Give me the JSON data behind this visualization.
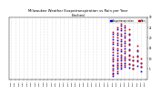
{
  "title": "Milwaukee Weather Evapotranspiration vs Rain per Year\n(Inches)",
  "title_fontsize": 2.8,
  "background_color": "#ffffff",
  "grid_color": "#bbbbbb",
  "legend_labels": [
    "Evapotranspiration",
    "Rain"
  ],
  "legend_colors": [
    "#0000ff",
    "#ff0000"
  ],
  "x_years": [
    1990,
    1991,
    1992,
    1993,
    1994,
    1995,
    1996,
    1997,
    1998,
    1999,
    2000,
    2001,
    2002,
    2003,
    2004,
    2005,
    2006,
    2007,
    2008,
    2009,
    2010,
    2011,
    2012,
    2013,
    2014,
    2015,
    2016,
    2017,
    2018,
    2019,
    2020,
    2021,
    2022,
    2023
  ],
  "et_points": [
    [
      2015,
      22.0
    ],
    [
      2015,
      19.5
    ],
    [
      2015,
      17.0
    ],
    [
      2015,
      14.5
    ],
    [
      2015,
      12.0
    ],
    [
      2015,
      9.5
    ],
    [
      2015,
      7.0
    ],
    [
      2015,
      5.0
    ],
    [
      2015,
      3.0
    ],
    [
      2015,
      1.5
    ],
    [
      2016,
      24.0
    ],
    [
      2016,
      21.5
    ],
    [
      2016,
      19.0
    ],
    [
      2016,
      16.5
    ],
    [
      2016,
      14.0
    ],
    [
      2016,
      11.5
    ],
    [
      2016,
      9.0
    ],
    [
      2016,
      7.0
    ],
    [
      2016,
      5.0
    ],
    [
      2016,
      3.0
    ],
    [
      2017,
      26.0
    ],
    [
      2017,
      23.5
    ],
    [
      2017,
      21.0
    ],
    [
      2017,
      18.5
    ],
    [
      2017,
      16.0
    ],
    [
      2017,
      13.5
    ],
    [
      2017,
      11.0
    ],
    [
      2017,
      9.0
    ],
    [
      2017,
      7.0
    ],
    [
      2017,
      5.0
    ],
    [
      2018,
      25.0
    ],
    [
      2018,
      22.5
    ],
    [
      2018,
      20.0
    ],
    [
      2018,
      17.5
    ],
    [
      2018,
      15.0
    ],
    [
      2018,
      12.5
    ],
    [
      2018,
      10.0
    ],
    [
      2018,
      8.0
    ],
    [
      2018,
      6.0
    ],
    [
      2019,
      22.0
    ],
    [
      2019,
      19.5
    ],
    [
      2019,
      17.0
    ],
    [
      2019,
      14.5
    ],
    [
      2019,
      12.0
    ],
    [
      2019,
      9.5
    ],
    [
      2019,
      7.5
    ],
    [
      2019,
      5.5
    ],
    [
      2020,
      9.0
    ],
    [
      2020,
      7.0
    ],
    [
      2020,
      5.0
    ],
    [
      2021,
      14.0
    ],
    [
      2021,
      11.5
    ],
    [
      2021,
      9.0
    ],
    [
      2021,
      6.5
    ],
    [
      2022,
      8.0
    ],
    [
      2022,
      6.0
    ],
    [
      2022,
      4.0
    ]
  ],
  "rain_points": [
    [
      2015,
      23.0
    ],
    [
      2015,
      20.5
    ],
    [
      2015,
      18.0
    ],
    [
      2015,
      15.5
    ],
    [
      2015,
      13.0
    ],
    [
      2015,
      10.5
    ],
    [
      2015,
      8.5
    ],
    [
      2015,
      6.5
    ],
    [
      2015,
      4.5
    ],
    [
      2015,
      2.5
    ],
    [
      2016,
      25.0
    ],
    [
      2016,
      22.5
    ],
    [
      2016,
      20.0
    ],
    [
      2016,
      17.5
    ],
    [
      2016,
      15.0
    ],
    [
      2016,
      12.5
    ],
    [
      2016,
      10.0
    ],
    [
      2016,
      8.0
    ],
    [
      2016,
      6.0
    ],
    [
      2016,
      4.0
    ],
    [
      2017,
      27.0
    ],
    [
      2017,
      24.5
    ],
    [
      2017,
      22.0
    ],
    [
      2017,
      19.5
    ],
    [
      2017,
      17.0
    ],
    [
      2017,
      14.5
    ],
    [
      2017,
      12.0
    ],
    [
      2017,
      10.0
    ],
    [
      2017,
      8.0
    ],
    [
      2017,
      6.0
    ],
    [
      2018,
      26.0
    ],
    [
      2018,
      23.5
    ],
    [
      2018,
      21.0
    ],
    [
      2018,
      18.5
    ],
    [
      2018,
      16.0
    ],
    [
      2018,
      13.5
    ],
    [
      2018,
      11.0
    ],
    [
      2018,
      9.0
    ],
    [
      2018,
      7.0
    ],
    [
      2019,
      24.0
    ],
    [
      2019,
      21.5
    ],
    [
      2019,
      19.0
    ],
    [
      2019,
      16.5
    ],
    [
      2019,
      14.0
    ],
    [
      2019,
      11.5
    ],
    [
      2019,
      9.5
    ],
    [
      2019,
      7.5
    ],
    [
      2020,
      11.0
    ],
    [
      2020,
      9.0
    ],
    [
      2020,
      7.0
    ],
    [
      2020,
      5.0
    ],
    [
      2021,
      16.0
    ],
    [
      2021,
      13.5
    ],
    [
      2021,
      11.0
    ],
    [
      2021,
      8.5
    ],
    [
      2022,
      10.0
    ],
    [
      2022,
      8.0
    ],
    [
      2022,
      6.0
    ]
  ],
  "ylim": [
    0,
    30
  ],
  "yticks": [
    5,
    10,
    15,
    20,
    25,
    30
  ],
  "xlim": [
    1989.5,
    2023.5
  ],
  "marker_size": 1.2,
  "dot_color_et": "#0000cc",
  "dot_color_rain": "#cc0000"
}
